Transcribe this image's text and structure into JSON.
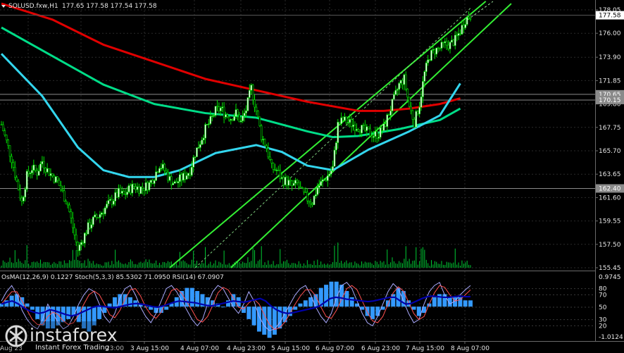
{
  "header": {
    "symbol_line": "SOLUSD.fxw,H1",
    "ohlc": "177.65 177.58 177.54 177.58",
    "indicator_line": "OsMA(12,26,9) 0.1227  Stoch(5,3,3) 85.5302 71.0950  RSI(14) 67.0907"
  },
  "price_axis": {
    "ticks": [
      "178.05",
      "176.00",
      "173.90",
      "171.85",
      "169.80",
      "167.75",
      "165.70",
      "163.65",
      "161.60",
      "159.55",
      "157.50",
      "155.45"
    ],
    "tick_values": [
      178.05,
      176.0,
      173.9,
      171.85,
      169.8,
      167.75,
      165.7,
      163.65,
      161.6,
      159.55,
      157.5,
      155.45
    ],
    "current_price": "177.58",
    "level_tags": [
      {
        "label": "170.65",
        "value": 170.65,
        "color": "#8a8a8a"
      },
      {
        "label": "170.15",
        "value": 170.15,
        "color": "#8a8a8a"
      },
      {
        "label": "162.40",
        "value": 162.4,
        "color": "#8a8a8a"
      }
    ]
  },
  "time_axis": [
    "3 Aug 15:00",
    "4 Aug 07:00",
    "4 Aug 23:00",
    "5 Aug 15:00",
    "6 Aug 07:00",
    "6 Aug 23:00",
    "7 Aug 15:00",
    "8 Aug 07:00"
  ],
  "time_axis_partial_left": "Aug 23",
  "time_axis_partial_mid": "23:00",
  "osc_axis": {
    "top": "0.9745",
    "bottom": "-1.0124",
    "levels": [
      {
        "label": "80",
        "value": 80
      },
      {
        "label": "70",
        "value": 70
      },
      {
        "label": "50",
        "value": 50
      },
      {
        "label": "30",
        "value": 30
      },
      {
        "label": "20",
        "value": 20
      }
    ]
  },
  "colors": {
    "bull_candle": "#ffffff",
    "bear_candle": "#000000",
    "candle_outline": "#00e000",
    "volume": "#00cc33",
    "ma_red": "#e00000",
    "ma_green": "#00dd88",
    "ma_cyan": "#33d6ee",
    "channel": "#33ee33",
    "osma_hist": "#3399ff",
    "stoch_main": "#aaaaff",
    "stoch_signal": "#ff5050",
    "rsi": "#0000aa",
    "price_tag_bg": "#ffffff",
    "level_tag_bg": "#8a8a8a"
  },
  "logo": {
    "brand": "instaforex",
    "tagline": "Instant Forex Trading"
  },
  "chart_data": {
    "type": "candlestick",
    "timeframe": "H1",
    "ylim": [
      155.45,
      178.05
    ],
    "close_series": [
      168,
      166.5,
      165,
      163,
      161.2,
      163.5,
      164.2,
      163.8,
      164.8,
      164,
      163.5,
      163,
      162,
      161,
      159,
      157,
      158,
      159,
      159.6,
      160,
      160.5,
      161,
      161.5,
      162,
      161.8,
      162.3,
      162.6,
      162.4,
      162.5,
      162.8,
      163.5,
      164.5,
      164,
      163.2,
      162.8,
      163.2,
      163.5,
      164,
      165.5,
      166.5,
      167.6,
      168.3,
      169.2,
      169.4,
      168.9,
      168.6,
      169,
      168.2,
      169.3,
      171.2,
      169.2,
      167,
      166,
      164.2,
      164,
      163.2,
      163,
      162.6,
      162.8,
      162,
      161.5,
      161.2,
      162.5,
      163,
      163.5,
      164.2,
      168,
      168.4,
      168.2,
      168,
      167.8,
      167.5,
      167.3,
      167.1,
      167.2,
      167.7,
      169,
      170.2,
      171.5,
      172,
      169.6,
      168.2,
      169.8,
      172.5,
      174,
      174.5,
      174.7,
      175,
      175,
      175.4,
      176.2,
      177.2,
      177.58
    ],
    "moving_averages": [
      {
        "color": "red",
        "points": [
          [
            0,
            178.6
          ],
          [
            10,
            177.2
          ],
          [
            20,
            175.0
          ],
          [
            30,
            173.5
          ],
          [
            40,
            172.0
          ],
          [
            50,
            171.0
          ],
          [
            60,
            170.0
          ],
          [
            70,
            169.2
          ],
          [
            75,
            169.2
          ],
          [
            80,
            169.4
          ],
          [
            86,
            169.8
          ],
          [
            90,
            170.3
          ]
        ]
      },
      {
        "color": "green",
        "points": [
          [
            0,
            176.5
          ],
          [
            10,
            174.0
          ],
          [
            20,
            171.5
          ],
          [
            30,
            169.8
          ],
          [
            40,
            169.0
          ],
          [
            50,
            168.6
          ],
          [
            60,
            167.4
          ],
          [
            65,
            166.9
          ],
          [
            70,
            167.0
          ],
          [
            78,
            167.6
          ],
          [
            86,
            168.4
          ],
          [
            90,
            169.4
          ]
        ]
      },
      {
        "color": "cyan",
        "points": [
          [
            0,
            174.2
          ],
          [
            8,
            170.5
          ],
          [
            15,
            166.0
          ],
          [
            20,
            164.0
          ],
          [
            25,
            163.4
          ],
          [
            30,
            163.4
          ],
          [
            35,
            164.0
          ],
          [
            42,
            165.5
          ],
          [
            50,
            166.2
          ],
          [
            55,
            165.6
          ],
          [
            60,
            164.4
          ],
          [
            65,
            164.0
          ],
          [
            72,
            165.8
          ],
          [
            80,
            167.4
          ],
          [
            86,
            168.8
          ],
          [
            90,
            171.6
          ]
        ]
      }
    ],
    "horizontal_levels": [
      170.65,
      170.15,
      162.4
    ],
    "channel_lines": [
      {
        "name": "upper",
        "from": [
          33,
          155.45
        ],
        "to": [
          95,
          178.8
        ]
      },
      {
        "name": "middle",
        "from": [
          38,
          155.45
        ],
        "to": [
          92,
          178.2
        ]
      },
      {
        "name": "lower",
        "from": [
          45,
          155.45
        ],
        "to": [
          100,
          178.6
        ]
      }
    ],
    "oscillators": {
      "osma_range": [
        -1.0124,
        0.9745
      ],
      "osma_hist": [
        0.1,
        0.2,
        0.35,
        0.4,
        0.3,
        0.1,
        -0.1,
        -0.4,
        -0.6,
        -0.7,
        -0.7,
        -0.6,
        -0.5,
        -0.4,
        -0.3,
        -0.5,
        -0.7,
        -0.8,
        -0.6,
        -0.4,
        -0.2,
        0.1,
        0.3,
        0.4,
        0.4,
        0.3,
        0.2,
        0.1,
        0.0,
        -0.1,
        -0.2,
        -0.2,
        -0.1,
        0.1,
        0.3,
        0.5,
        0.6,
        0.6,
        0.5,
        0.4,
        0.3,
        0.2,
        0.1,
        0.0,
        0.2,
        0.4,
        0.3,
        -0.2,
        -0.4,
        -0.6,
        -0.8,
        -0.9,
        -1.0,
        -0.9,
        -0.7,
        -0.5,
        -0.3,
        -0.1,
        0.1,
        0.2,
        0.3,
        0.4,
        0.6,
        0.7,
        0.8,
        0.8,
        0.7,
        0.5,
        0.3,
        0.1,
        -0.1,
        -0.3,
        -0.4,
        -0.3,
        -0.1,
        0.2,
        0.4,
        0.6,
        0.5,
        0.2,
        -0.1,
        -0.3,
        -0.2,
        0.1,
        0.3,
        0.4,
        0.4,
        0.3,
        0.3,
        0.3,
        0.2,
        0.2
      ],
      "stoch_main": [
        60,
        75,
        85,
        70,
        45,
        30,
        20,
        15,
        30,
        55,
        40,
        25,
        15,
        20,
        35,
        55,
        70,
        80,
        75,
        55,
        35,
        25,
        40,
        65,
        80,
        85,
        70,
        50,
        35,
        25,
        40,
        60,
        80,
        85,
        75,
        60,
        45,
        30,
        20,
        30,
        55,
        75,
        85,
        80,
        65,
        50,
        40,
        55,
        75,
        60,
        35,
        20,
        12,
        15,
        25,
        40,
        55,
        70,
        80,
        85,
        70,
        50,
        35,
        25,
        40,
        65,
        85,
        90,
        80,
        60,
        40,
        25,
        20,
        35,
        55,
        75,
        88,
        80,
        60,
        40,
        25,
        30,
        55,
        75,
        85,
        90,
        70,
        55,
        60,
        70,
        78,
        85
      ],
      "stoch_signal": [
        55,
        65,
        75,
        75,
        60,
        45,
        30,
        22,
        22,
        35,
        42,
        38,
        28,
        22,
        25,
        38,
        55,
        70,
        76,
        70,
        55,
        38,
        33,
        45,
        63,
        78,
        80,
        68,
        50,
        38,
        32,
        42,
        60,
        77,
        80,
        72,
        58,
        45,
        30,
        26,
        35,
        53,
        73,
        82,
        78,
        65,
        50,
        47,
        57,
        63,
        55,
        38,
        22,
        14,
        17,
        26,
        40,
        55,
        68,
        78,
        78,
        68,
        50,
        35,
        32,
        45,
        63,
        80,
        85,
        78,
        60,
        42,
        28,
        25,
        35,
        55,
        73,
        83,
        76,
        58,
        40,
        30,
        35,
        55,
        73,
        85,
        82,
        70,
        60,
        62,
        70,
        78
      ],
      "rsi": [
        55,
        58,
        60,
        56,
        50,
        45,
        42,
        40,
        42,
        46,
        44,
        41,
        38,
        36,
        38,
        42,
        46,
        50,
        52,
        51,
        50,
        49,
        51,
        53,
        55,
        56,
        55,
        53,
        51,
        50,
        52,
        55,
        58,
        60,
        59,
        58,
        57,
        55,
        53,
        52,
        54,
        56,
        58,
        60,
        59,
        58,
        60,
        62,
        64,
        60,
        52,
        46,
        42,
        40,
        41,
        43,
        45,
        47,
        49,
        52,
        58,
        64,
        66,
        65,
        63,
        62,
        61,
        60,
        59,
        60,
        62,
        64,
        66,
        66,
        60,
        55,
        56,
        60,
        64,
        67,
        68,
        67,
        66,
        66,
        67,
        68,
        67,
        67
      ],
      "level_values": [
        80,
        70,
        50,
        30,
        20
      ]
    }
  }
}
